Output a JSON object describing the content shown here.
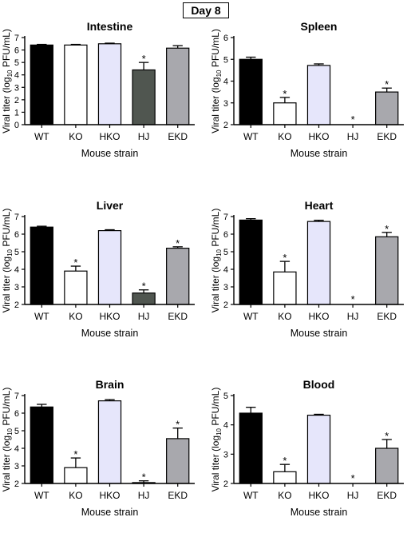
{
  "header": {
    "day_label": "Day 8"
  },
  "colors": {
    "WT": "#000000",
    "KO": "#ffffff",
    "HKO": "#e6e6fb",
    "HJ": "#505650",
    "EKD": "#a8a8ad"
  },
  "chart_data": [
    {
      "type": "bar",
      "title": "Intestine",
      "xlabel": "Mouse strain",
      "ylabel_parts": [
        "Viral titer (log",
        "10",
        " PFU/mL)"
      ],
      "categories": [
        "WT",
        "KO",
        "HKO",
        "HJ",
        "EKD"
      ],
      "values": [
        6.4,
        6.4,
        6.5,
        4.4,
        6.15
      ],
      "errors": [
        0.05,
        0.05,
        0.05,
        0.6,
        0.2
      ],
      "significant": [
        false,
        false,
        false,
        true,
        false
      ],
      "ylim": [
        0,
        7
      ],
      "yticks": [
        0,
        1,
        2,
        3,
        4,
        5,
        6,
        7
      ]
    },
    {
      "type": "bar",
      "title": "Spleen",
      "xlabel": "Mouse strain",
      "ylabel_parts": [
        "Viral titer (log",
        "10",
        " PFU/mL)"
      ],
      "categories": [
        "WT",
        "KO",
        "HKO",
        "HJ",
        "EKD"
      ],
      "values": [
        5.0,
        3.0,
        4.72,
        null,
        3.5
      ],
      "errors": [
        0.1,
        0.25,
        0.07,
        0,
        0.18
      ],
      "significant": [
        false,
        true,
        false,
        true,
        true
      ],
      "ylim": [
        2,
        6
      ],
      "yticks": [
        2,
        3,
        4,
        5,
        6
      ]
    },
    {
      "type": "bar",
      "title": "Liver",
      "xlabel": "Mouse strain",
      "ylabel_parts": [
        "Viral titer (log",
        "10",
        " PFU/mL)"
      ],
      "categories": [
        "WT",
        "KO",
        "HKO",
        "HJ",
        "EKD"
      ],
      "values": [
        6.4,
        3.9,
        6.2,
        2.65,
        5.2
      ],
      "errors": [
        0.05,
        0.28,
        0.05,
        0.18,
        0.08
      ],
      "significant": [
        false,
        true,
        false,
        true,
        true
      ],
      "ylim": [
        2,
        7
      ],
      "yticks": [
        2,
        3,
        4,
        5,
        6,
        7
      ]
    },
    {
      "type": "bar",
      "title": "Heart",
      "xlabel": "Mouse strain",
      "ylabel_parts": [
        "Viral titer (log",
        "10",
        " PFU/mL)"
      ],
      "categories": [
        "WT",
        "KO",
        "HKO",
        "HJ",
        "EKD"
      ],
      "values": [
        6.8,
        3.85,
        6.72,
        null,
        5.85
      ],
      "errors": [
        0.08,
        0.6,
        0.07,
        0,
        0.25
      ],
      "significant": [
        false,
        true,
        false,
        true,
        true
      ],
      "ylim": [
        2,
        7
      ],
      "yticks": [
        2,
        3,
        4,
        5,
        6,
        7
      ]
    },
    {
      "type": "bar",
      "title": "Brain",
      "xlabel": "Mouse strain",
      "ylabel_parts": [
        "Viral titer (log",
        "10",
        " PFU/mL)"
      ],
      "categories": [
        "WT",
        "KO",
        "HKO",
        "HJ",
        "EKD"
      ],
      "values": [
        6.35,
        2.9,
        6.7,
        2.05,
        4.55
      ],
      "errors": [
        0.15,
        0.55,
        0.07,
        0.1,
        0.6
      ],
      "significant": [
        false,
        true,
        false,
        true,
        true
      ],
      "ylim": [
        2,
        7
      ],
      "yticks": [
        2,
        3,
        4,
        5,
        6,
        7
      ]
    },
    {
      "type": "bar",
      "title": "Blood",
      "xlabel": "Mouse strain",
      "ylabel_parts": [
        "Viral titer (log",
        "10",
        " PFU/mL)"
      ],
      "categories": [
        "WT",
        "KO",
        "HKO",
        "HJ",
        "EKD"
      ],
      "values": [
        4.4,
        2.4,
        4.33,
        null,
        3.2
      ],
      "errors": [
        0.2,
        0.25,
        0.03,
        0,
        0.3
      ],
      "significant": [
        false,
        true,
        false,
        true,
        true
      ],
      "ylim": [
        2,
        5
      ],
      "yticks": [
        2,
        3,
        4,
        5
      ]
    }
  ]
}
